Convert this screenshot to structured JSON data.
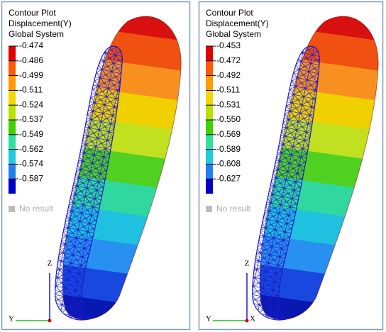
{
  "panels": [
    {
      "title": [
        "Contour Plot",
        "Displacement(Y)",
        "Global System"
      ],
      "legend": [
        "-0.474",
        "-0.486",
        "-0.499",
        "-0.511",
        "-0.524",
        "-0.537",
        "-0.549",
        "-0.562",
        "-0.574",
        "-0.587"
      ],
      "no_result": "No result",
      "axes": [
        "Z",
        "Y"
      ]
    },
    {
      "title": [
        "Contour Plot",
        "Displacement(Y)",
        "Global System"
      ],
      "legend": [
        "-0.453",
        "-0.472",
        "-0.492",
        "-0.511",
        "-0.531",
        "-0.550",
        "-0.569",
        "-0.589",
        "-0.608",
        "-0.627"
      ],
      "no_result": "No result",
      "axes": [
        "Z",
        "Y",
        "X"
      ]
    }
  ]
}
